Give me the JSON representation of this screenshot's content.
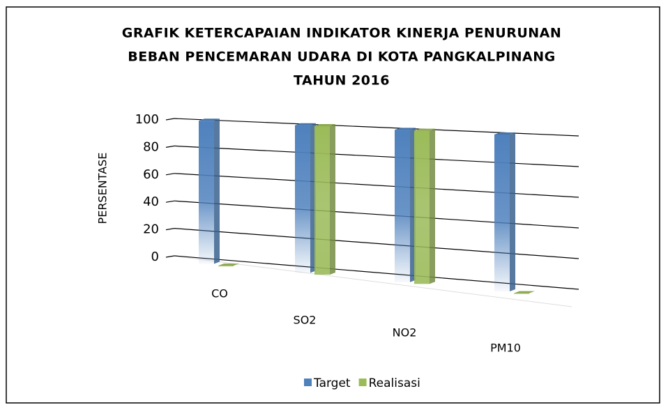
{
  "chart_data": {
    "type": "bar3d",
    "title": [
      "GRAFIK KETERCAPAIAN INDIKATOR KINERJA PENURUNAN",
      "BEBAN PENCEMARAN UDARA DI KOTA PANGKALPINANG",
      "TAHUN 2016"
    ],
    "y_label": "PERSENTASE",
    "categories": [
      "CO",
      "SO2",
      "NO2",
      "PM10"
    ],
    "series": [
      {
        "name": "Target",
        "color": "#4f81bd",
        "values": [
          100,
          100,
          100,
          100
        ]
      },
      {
        "name": "Realisasi",
        "color": "#9bbb59",
        "values": [
          0,
          100,
          100,
          0
        ]
      }
    ],
    "ylim": [
      0,
      100
    ],
    "yticks": [
      0,
      20,
      40,
      60,
      80,
      100
    ],
    "grid": true,
    "legend": "bottom"
  }
}
